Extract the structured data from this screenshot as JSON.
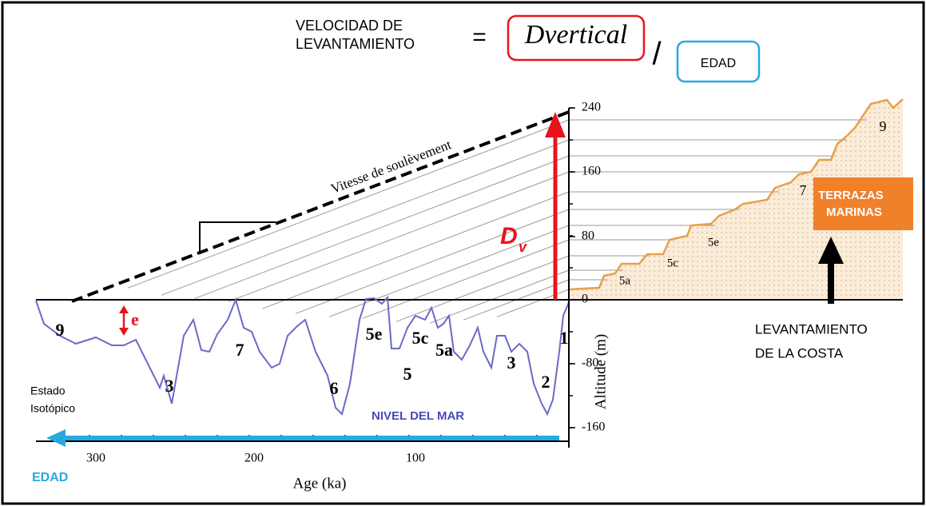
{
  "equation": {
    "left_line1": "VELOCIDAD DE",
    "left_line2": "LEVANTAMIENTO",
    "equals": "=",
    "numerator": "Dvertical",
    "slash": "/",
    "denominator": "EDAD"
  },
  "diagram": {
    "slope_label": "Vitesse de soulèvement",
    "dv_label": "D",
    "dv_subscript": "v",
    "e_label": "e",
    "y_axis_label": "Altitude (m)",
    "y_ticks": [
      "240",
      "160",
      "80",
      "0",
      "-80",
      "-160"
    ],
    "x_axis_label": "Age (ka)",
    "x_ticks": [
      "300",
      "200",
      "100"
    ],
    "stage_labels": [
      "9",
      "3",
      "7",
      "6",
      "5e",
      "5c",
      "5a",
      "5",
      "3",
      "2",
      "1"
    ],
    "terrace_labels": [
      "5a",
      "5c",
      "5e",
      "7",
      "9"
    ],
    "terraces_box": [
      "TERRAZAS",
      "MARINAS"
    ],
    "uplift_label": [
      "LEVANTAMIENTO",
      "DE LA COSTA"
    ],
    "isotope_label": [
      "Estado",
      "Isotópico"
    ],
    "sea_level_label": "NIVEL DEL MAR",
    "age_label": "EDAD"
  }
}
